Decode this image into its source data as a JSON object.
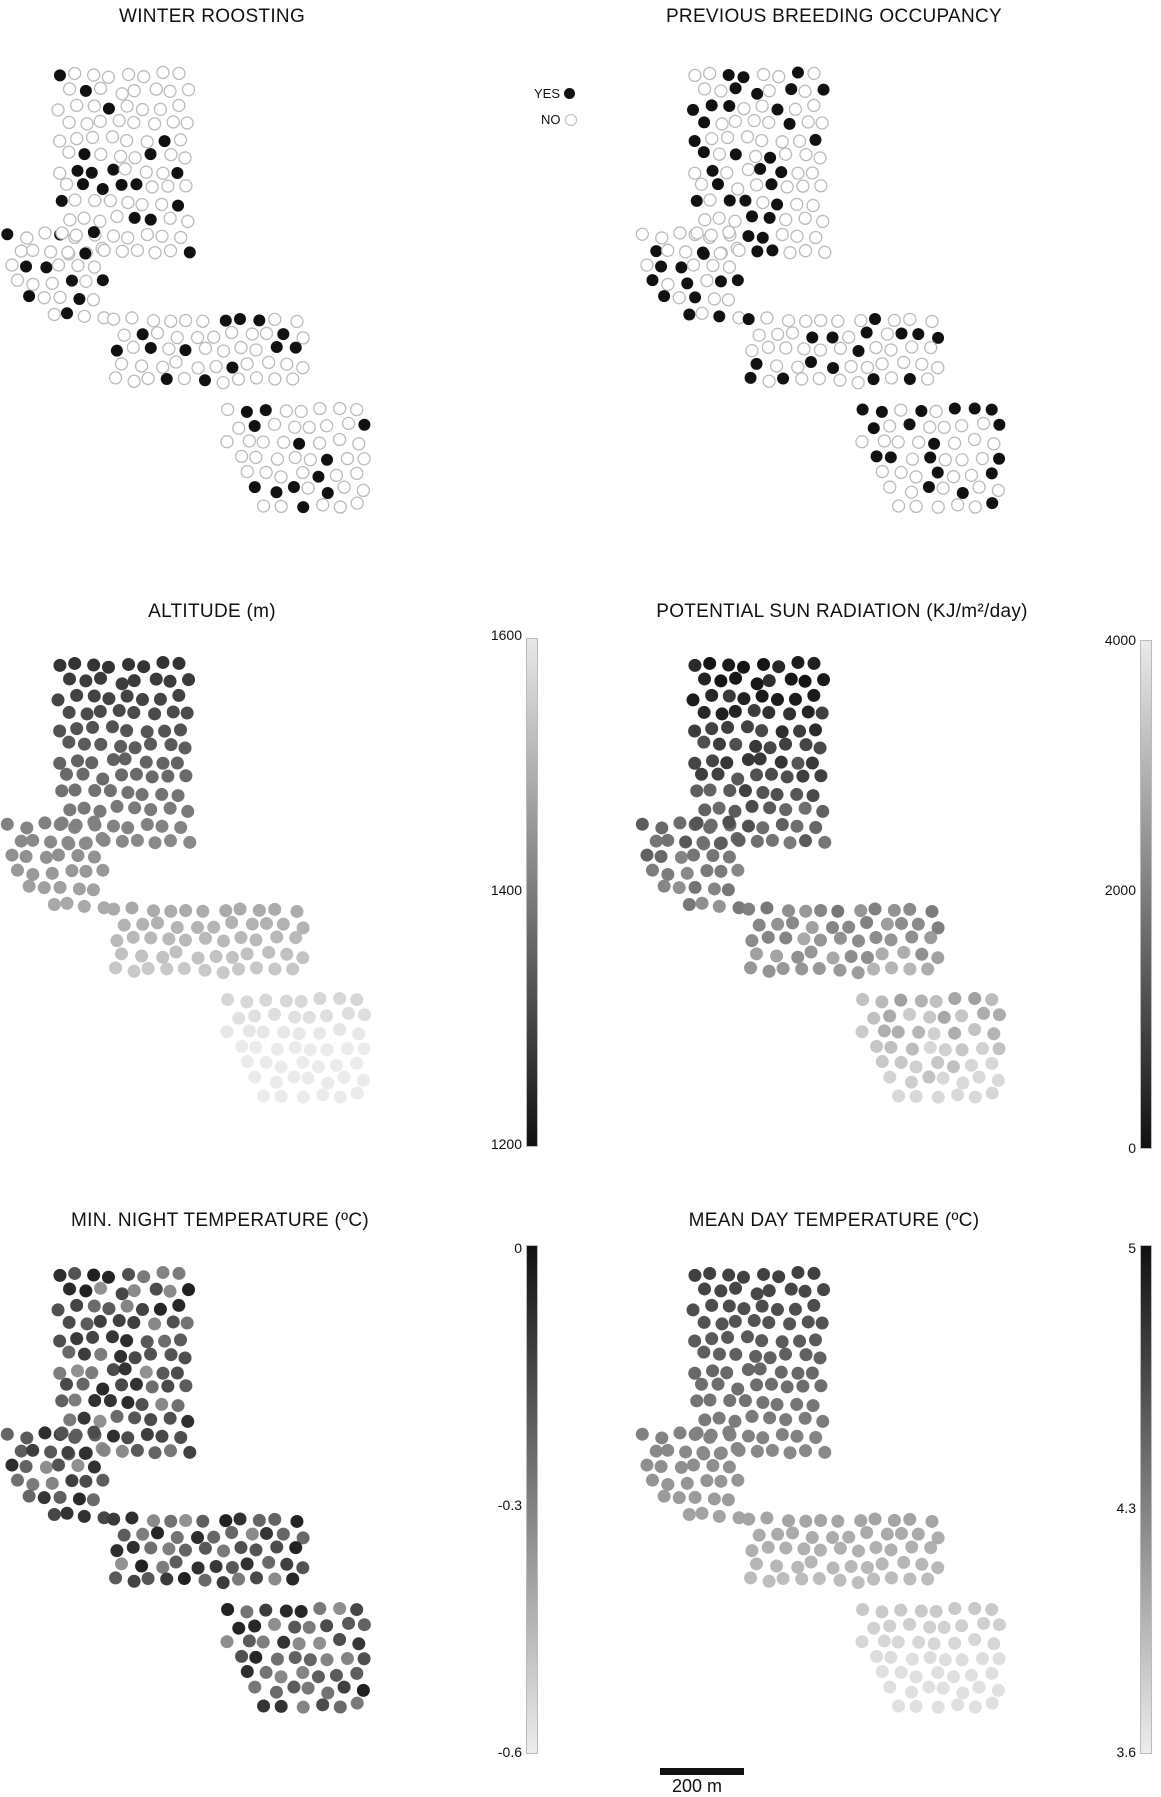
{
  "panels": {
    "winter_roosting": {
      "title": "WINTER ROOSTING"
    },
    "previous_breeding": {
      "title": "PREVIOUS BREEDING OCCUPANCY"
    },
    "altitude": {
      "title": "ALTITUDE (m)"
    },
    "sun_radiation": {
      "title": "POTENTIAL SUN RADIATION (KJ/m²/day)"
    },
    "min_night_temp": {
      "title": "MIN. NIGHT TEMPERATURE (ºC)"
    },
    "mean_day_temp": {
      "title": "MEAN DAY TEMPERATURE (ºC)"
    }
  },
  "legend": {
    "yes": "YES",
    "no": "NO"
  },
  "colorbars": {
    "altitude": {
      "max": "1600",
      "mid": "1400",
      "min": "1200",
      "gradient": "light-top"
    },
    "sun_radiation": {
      "max": "4000",
      "mid": "2000",
      "min": "0",
      "gradient": "light-top"
    },
    "min_night_temp": {
      "max": "0",
      "mid": "-0.3",
      "min": "-0.6",
      "gradient": "dark-top"
    },
    "mean_day_temp": {
      "max": "5",
      "mid": "4.3",
      "min": "3.6",
      "gradient": "dark-top"
    }
  },
  "scale_bar": {
    "label": "200 m"
  },
  "colors": {
    "dark": "#111111",
    "empty_stroke": "#bbbbbb",
    "background": "#ffffff"
  }
}
